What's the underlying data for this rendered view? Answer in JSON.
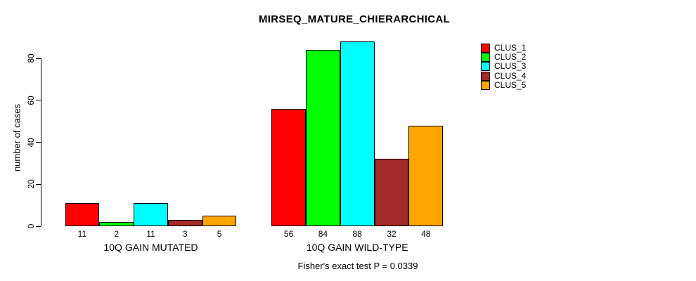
{
  "chart_data": {
    "type": "bar",
    "title": "MIRSEQ_MATURE_CHIERARCHICAL",
    "ylabel": "number of cases",
    "xlabel": "",
    "categories": [
      "10Q GAIN MUTATED",
      "10Q GAIN WILD-TYPE"
    ],
    "series": [
      {
        "name": "CLUS_1",
        "color": "#ff0000",
        "values": [
          11,
          56
        ]
      },
      {
        "name": "CLUS_2",
        "color": "#00ff00",
        "values": [
          2,
          84
        ]
      },
      {
        "name": "CLUS_3",
        "color": "#00ffff",
        "values": [
          11,
          88
        ]
      },
      {
        "name": "CLUS_4",
        "color": "#a52a2a",
        "values": [
          3,
          32
        ]
      },
      {
        "name": "CLUS_5",
        "color": "#ffa500",
        "values": [
          5,
          48
        ]
      }
    ],
    "bar_value_labels": [
      [
        11,
        2,
        11,
        3,
        5
      ],
      [
        56,
        84,
        88,
        32,
        48
      ]
    ],
    "yticks": [
      0,
      20,
      40,
      60,
      80
    ],
    "ylim": [
      0,
      88
    ],
    "grid": false,
    "legend_position": "right",
    "legend": [
      "CLUS_1",
      "CLUS_2",
      "CLUS_3",
      "CLUS_4",
      "CLUS_5"
    ],
    "annotation": "Fisher's exact test P = 0.0339",
    "bar_border_color": "#000000",
    "background_color": "#ffffff"
  }
}
